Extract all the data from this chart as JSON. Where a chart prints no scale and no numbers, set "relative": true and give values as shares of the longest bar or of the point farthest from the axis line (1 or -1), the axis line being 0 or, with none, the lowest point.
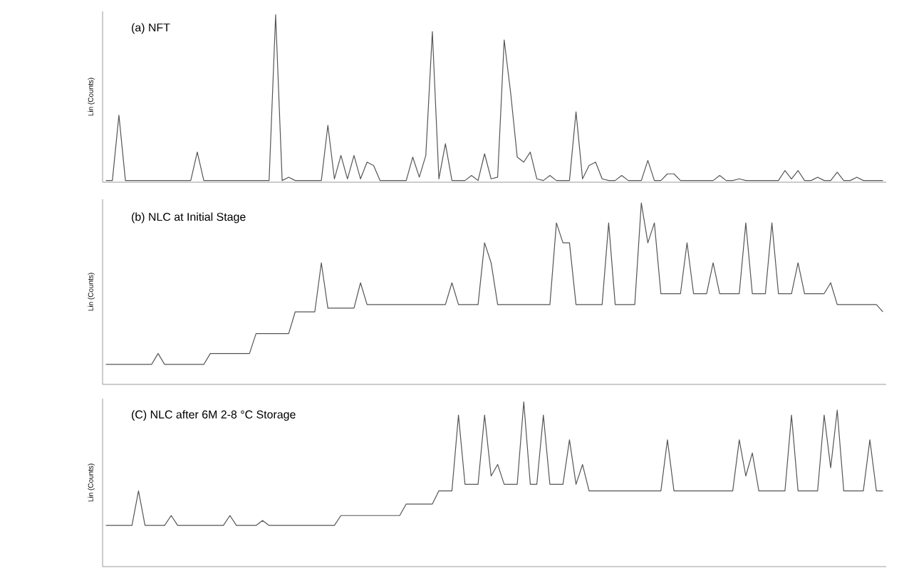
{
  "chart_data": [
    {
      "type": "line",
      "relative": true,
      "ylabel": "Lin (Counts)",
      "annotations": [
        "(a) NFT"
      ],
      "tick_labels": false,
      "color": "#555555",
      "categories": [
        null,
        null,
        null,
        null,
        null,
        null,
        null,
        null,
        null,
        null,
        null,
        null,
        null,
        null,
        null,
        null,
        null,
        null,
        null,
        null,
        null,
        null,
        null,
        null,
        null,
        null,
        null,
        null,
        null,
        null,
        null,
        null,
        null,
        null,
        null,
        null,
        null,
        null,
        null,
        null,
        null,
        null,
        null,
        null,
        null,
        null,
        null,
        null,
        null,
        null,
        null,
        null,
        null,
        null,
        null,
        null,
        null,
        null,
        null,
        null,
        null,
        null,
        null,
        null,
        null,
        null,
        null,
        null,
        null,
        null,
        null,
        null,
        null,
        null,
        null,
        null,
        null,
        null,
        null,
        null,
        null,
        null,
        null,
        null,
        null,
        null,
        null,
        null,
        null,
        null,
        null,
        null,
        null,
        null,
        null,
        null,
        null,
        null,
        null,
        null,
        null,
        null,
        null,
        null,
        null,
        null,
        null,
        null,
        null,
        null,
        null,
        null,
        null,
        null,
        null,
        null,
        null,
        null,
        null,
        null
      ],
      "values": [
        0.01,
        0.01,
        0.4,
        0.01,
        0.01,
        0.01,
        0.01,
        0.01,
        0.01,
        0.01,
        0.01,
        0.01,
        0.01,
        0.01,
        0.18,
        0.01,
        0.01,
        0.01,
        0.01,
        0.01,
        0.01,
        0.01,
        0.01,
        0.01,
        0.01,
        0.01,
        1.0,
        0.01,
        0.03,
        0.01,
        0.01,
        0.01,
        0.01,
        0.01,
        0.34,
        0.02,
        0.16,
        0.02,
        0.16,
        0.02,
        0.12,
        0.1,
        0.01,
        0.01,
        0.01,
        0.01,
        0.01,
        0.15,
        0.03,
        0.16,
        0.9,
        0.02,
        0.23,
        0.01,
        0.01,
        0.01,
        0.04,
        0.01,
        0.17,
        0.02,
        0.03,
        0.85,
        0.53,
        0.15,
        0.12,
        0.18,
        0.02,
        0.01,
        0.04,
        0.01,
        0.01,
        0.01,
        0.42,
        0.02,
        0.1,
        0.12,
        0.02,
        0.01,
        0.01,
        0.04,
        0.01,
        0.01,
        0.01,
        0.13,
        0.01,
        0.01,
        0.05,
        0.05,
        0.01,
        0.01,
        0.01,
        0.01,
        0.01,
        0.01,
        0.04,
        0.01,
        0.01,
        0.02,
        0.01,
        0.01,
        0.01,
        0.01,
        0.01,
        0.01,
        0.07,
        0.02,
        0.07,
        0.01,
        0.01,
        0.03,
        0.01,
        0.01,
        0.06,
        0.01,
        0.01,
        0.03,
        0.01,
        0.01,
        0.01,
        0.01
      ]
    },
    {
      "type": "line",
      "relative": true,
      "ylabel": "Lin (Counts)",
      "annotations": [
        "(b) NLC at Initial Stage"
      ],
      "tick_labels": false,
      "color": "#555555",
      "categories": [
        null,
        null,
        null,
        null,
        null,
        null,
        null,
        null,
        null,
        null,
        null,
        null,
        null,
        null,
        null,
        null,
        null,
        null,
        null,
        null,
        null,
        null,
        null,
        null,
        null,
        null,
        null,
        null,
        null,
        null,
        null,
        null,
        null,
        null,
        null,
        null,
        null,
        null,
        null,
        null,
        null,
        null,
        null,
        null,
        null,
        null,
        null,
        null,
        null,
        null,
        null,
        null,
        null,
        null,
        null,
        null,
        null,
        null,
        null,
        null,
        null,
        null,
        null,
        null,
        null,
        null,
        null,
        null,
        null,
        null,
        null,
        null,
        null,
        null,
        null,
        null,
        null,
        null,
        null,
        null,
        null,
        null,
        null,
        null,
        null,
        null,
        null,
        null,
        null,
        null,
        null,
        null,
        null,
        null,
        null,
        null,
        null,
        null,
        null,
        null,
        null,
        null,
        null,
        null,
        null,
        null,
        null,
        null,
        null,
        null,
        null,
        null,
        null,
        null,
        null,
        null,
        null,
        null,
        null,
        null
      ],
      "values": [
        0.11,
        0.11,
        0.11,
        0.11,
        0.11,
        0.11,
        0.11,
        0.11,
        0.17,
        0.11,
        0.11,
        0.11,
        0.11,
        0.11,
        0.11,
        0.11,
        0.17,
        0.17,
        0.17,
        0.17,
        0.17,
        0.17,
        0.17,
        0.28,
        0.28,
        0.28,
        0.28,
        0.28,
        0.28,
        0.4,
        0.4,
        0.4,
        0.4,
        0.67,
        0.42,
        0.42,
        0.42,
        0.42,
        0.42,
        0.56,
        0.44,
        0.44,
        0.44,
        0.44,
        0.44,
        0.44,
        0.44,
        0.44,
        0.44,
        0.44,
        0.44,
        0.44,
        0.44,
        0.56,
        0.44,
        0.44,
        0.44,
        0.44,
        0.78,
        0.67,
        0.44,
        0.44,
        0.44,
        0.44,
        0.44,
        0.44,
        0.44,
        0.44,
        0.44,
        0.89,
        0.78,
        0.78,
        0.44,
        0.44,
        0.44,
        0.44,
        0.44,
        0.89,
        0.44,
        0.44,
        0.44,
        0.44,
        1.0,
        0.78,
        0.89,
        0.5,
        0.5,
        0.5,
        0.5,
        0.78,
        0.5,
        0.5,
        0.5,
        0.67,
        0.5,
        0.5,
        0.5,
        0.5,
        0.89,
        0.5,
        0.5,
        0.5,
        0.89,
        0.5,
        0.5,
        0.5,
        0.67,
        0.5,
        0.5,
        0.5,
        0.5,
        0.56,
        0.44,
        0.44,
        0.44,
        0.44,
        0.44,
        0.44,
        0.44,
        0.4
      ]
    },
    {
      "type": "line",
      "relative": true,
      "ylabel": "Lin (Counts)",
      "annotations": [
        "(C) NLC after 6M 2-8 °C Storage"
      ],
      "tick_labels": false,
      "color": "#555555",
      "categories": [
        null,
        null,
        null,
        null,
        null,
        null,
        null,
        null,
        null,
        null,
        null,
        null,
        null,
        null,
        null,
        null,
        null,
        null,
        null,
        null,
        null,
        null,
        null,
        null,
        null,
        null,
        null,
        null,
        null,
        null,
        null,
        null,
        null,
        null,
        null,
        null,
        null,
        null,
        null,
        null,
        null,
        null,
        null,
        null,
        null,
        null,
        null,
        null,
        null,
        null,
        null,
        null,
        null,
        null,
        null,
        null,
        null,
        null,
        null,
        null,
        null,
        null,
        null,
        null,
        null,
        null,
        null,
        null,
        null,
        null,
        null,
        null,
        null,
        null,
        null,
        null,
        null,
        null,
        null,
        null,
        null,
        null,
        null,
        null,
        null,
        null,
        null,
        null,
        null,
        null,
        null,
        null,
        null,
        null,
        null,
        null,
        null,
        null,
        null,
        null,
        null,
        null,
        null,
        null,
        null,
        null,
        null,
        null,
        null,
        null,
        null,
        null,
        null,
        null,
        null,
        null,
        null,
        null,
        null,
        null
      ],
      "values": [
        0.25,
        0.25,
        0.25,
        0.25,
        0.25,
        0.46,
        0.25,
        0.25,
        0.25,
        0.25,
        0.31,
        0.25,
        0.25,
        0.25,
        0.25,
        0.25,
        0.25,
        0.25,
        0.25,
        0.31,
        0.25,
        0.25,
        0.25,
        0.25,
        0.28,
        0.25,
        0.25,
        0.25,
        0.25,
        0.25,
        0.25,
        0.25,
        0.25,
        0.25,
        0.25,
        0.25,
        0.31,
        0.31,
        0.31,
        0.31,
        0.31,
        0.31,
        0.31,
        0.31,
        0.31,
        0.31,
        0.38,
        0.38,
        0.38,
        0.38,
        0.38,
        0.46,
        0.46,
        0.46,
        0.92,
        0.5,
        0.5,
        0.5,
        0.92,
        0.55,
        0.62,
        0.5,
        0.5,
        0.5,
        1.0,
        0.5,
        0.5,
        0.92,
        0.5,
        0.5,
        0.5,
        0.77,
        0.5,
        0.62,
        0.46,
        0.46,
        0.46,
        0.46,
        0.46,
        0.46,
        0.46,
        0.46,
        0.46,
        0.46,
        0.46,
        0.46,
        0.77,
        0.46,
        0.46,
        0.46,
        0.46,
        0.46,
        0.46,
        0.46,
        0.46,
        0.46,
        0.46,
        0.77,
        0.55,
        0.69,
        0.46,
        0.46,
        0.46,
        0.46,
        0.46,
        0.92,
        0.46,
        0.46,
        0.46,
        0.46,
        0.92,
        0.6,
        0.95,
        0.46,
        0.46,
        0.46,
        0.46,
        0.77,
        0.46,
        0.46
      ]
    }
  ]
}
